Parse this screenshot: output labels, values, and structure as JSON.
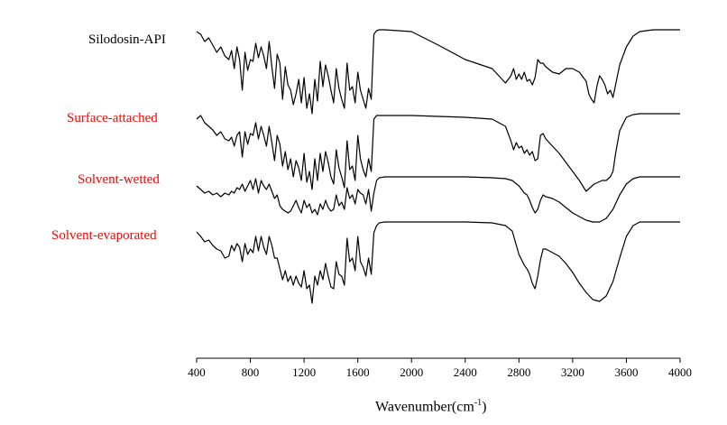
{
  "chart_data": {
    "type": "line",
    "title": "",
    "xlabel": "Wavenumber(cm-1)",
    "xlabel_main": "Wavenumber(cm",
    "xlabel_sup": "-1",
    "xlabel_close": ")",
    "ylabel": "",
    "xlim": [
      400,
      4000
    ],
    "xticks": [
      400,
      800,
      1200,
      1600,
      2000,
      2400,
      2800,
      3200,
      3600,
      4000
    ],
    "grid": false,
    "legend": "inline labels, left",
    "series": [
      {
        "name": "Silodosin-API",
        "color": "#000000",
        "x": [
          400,
          430,
          460,
          490,
          520,
          550,
          580,
          610,
          640,
          660,
          680,
          700,
          720,
          740,
          760,
          780,
          800,
          820,
          840,
          860,
          880,
          900,
          920,
          940,
          960,
          980,
          1000,
          1020,
          1040,
          1060,
          1080,
          1100,
          1120,
          1140,
          1160,
          1180,
          1200,
          1220,
          1240,
          1260,
          1280,
          1300,
          1320,
          1340,
          1360,
          1380,
          1400,
          1420,
          1440,
          1460,
          1480,
          1500,
          1520,
          1540,
          1560,
          1580,
          1600,
          1620,
          1640,
          1660,
          1680,
          1700,
          1720,
          1740,
          1760,
          1800,
          1900,
          2000,
          2200,
          2400,
          2600,
          2700,
          2740,
          2760,
          2780,
          2800,
          2820,
          2840,
          2860,
          2880,
          2900,
          2920,
          2940,
          2960,
          2980,
          3000,
          3050,
          3100,
          3150,
          3200,
          3250,
          3300,
          3320,
          3340,
          3360,
          3380,
          3400,
          3420,
          3440,
          3460,
          3480,
          3500,
          3550,
          3600,
          3650,
          3700,
          3800,
          4000
        ],
        "y": [
          35,
          38,
          46,
          42,
          50,
          58,
          52,
          62,
          66,
          56,
          76,
          52,
          66,
          100,
          58,
          78,
          66,
          68,
          48,
          64,
          52,
          62,
          76,
          46,
          74,
          98,
          60,
          70,
          110,
          74,
          94,
          100,
          116,
          104,
          88,
          114,
          86,
          120,
          104,
          126,
          88,
          112,
          68,
          96,
          72,
          84,
          100,
          114,
          76,
          98,
          110,
          120,
          70,
          100,
          96,
          114,
          80,
          100,
          110,
          120,
          98,
          110,
          38,
          34,
          33,
          33,
          34,
          35,
          50,
          66,
          76,
          92,
          84,
          76,
          88,
          82,
          88,
          80,
          90,
          88,
          94,
          86,
          66,
          70,
          70,
          74,
          80,
          82,
          76,
          76,
          80,
          90,
          104,
          110,
          114,
          96,
          84,
          88,
          94,
          104,
          100,
          108,
          72,
          52,
          40,
          35,
          33,
          33
        ]
      },
      {
        "name": "Surface-attached",
        "color": "#000000",
        "x": [
          400,
          430,
          460,
          490,
          520,
          550,
          580,
          610,
          640,
          660,
          680,
          700,
          720,
          740,
          760,
          780,
          800,
          820,
          840,
          860,
          880,
          900,
          920,
          940,
          960,
          980,
          1000,
          1020,
          1040,
          1060,
          1080,
          1100,
          1120,
          1140,
          1160,
          1180,
          1200,
          1220,
          1240,
          1260,
          1280,
          1300,
          1320,
          1340,
          1360,
          1380,
          1400,
          1420,
          1440,
          1460,
          1480,
          1500,
          1520,
          1540,
          1560,
          1580,
          1600,
          1620,
          1640,
          1660,
          1680,
          1700,
          1720,
          1740,
          1760,
          1800,
          1900,
          2000,
          2200,
          2400,
          2600,
          2700,
          2740,
          2760,
          2780,
          2800,
          2820,
          2840,
          2860,
          2880,
          2900,
          2920,
          2940,
          2960,
          2980,
          3000,
          3050,
          3100,
          3150,
          3200,
          3250,
          3300,
          3330,
          3360,
          3390,
          3420,
          3450,
          3480,
          3500,
          3520,
          3550,
          3600,
          3650,
          3700,
          3800,
          4000
        ],
        "y": [
          132,
          128,
          136,
          140,
          144,
          150,
          146,
          154,
          156,
          152,
          162,
          150,
          146,
          174,
          146,
          160,
          148,
          150,
          136,
          154,
          140,
          150,
          162,
          140,
          158,
          178,
          150,
          160,
          184,
          168,
          188,
          176,
          196,
          178,
          186,
          200,
          170,
          202,
          190,
          210,
          176,
          200,
          170,
          190,
          168,
          180,
          196,
          204,
          166,
          186,
          196,
          208,
          156,
          188,
          184,
          200,
          150,
          176,
          188,
          196,
          176,
          190,
          132,
          128,
          128,
          128,
          128,
          128,
          129,
          130,
          132,
          140,
          156,
          166,
          158,
          164,
          162,
          170,
          166,
          172,
          168,
          178,
          176,
          150,
          148,
          154,
          162,
          170,
          180,
          190,
          200,
          212,
          208,
          204,
          202,
          200,
          200,
          196,
          190,
          170,
          145,
          130,
          127,
          126,
          126,
          126
        ]
      },
      {
        "name": "Solvent-wetted",
        "color": "#000000",
        "x": [
          400,
          430,
          460,
          490,
          520,
          550,
          580,
          610,
          640,
          660,
          680,
          700,
          720,
          740,
          760,
          780,
          800,
          820,
          840,
          860,
          880,
          900,
          920,
          940,
          960,
          980,
          1000,
          1020,
          1040,
          1060,
          1080,
          1100,
          1120,
          1140,
          1160,
          1180,
          1200,
          1220,
          1240,
          1260,
          1280,
          1300,
          1320,
          1340,
          1360,
          1380,
          1400,
          1420,
          1440,
          1460,
          1480,
          1500,
          1520,
          1540,
          1560,
          1580,
          1600,
          1620,
          1640,
          1660,
          1680,
          1700,
          1720,
          1740,
          1760,
          1800,
          1900,
          2000,
          2200,
          2400,
          2600,
          2700,
          2750,
          2800,
          2840,
          2860,
          2880,
          2900,
          2920,
          2940,
          2960,
          2980,
          3000,
          3050,
          3100,
          3150,
          3200,
          3250,
          3300,
          3350,
          3400,
          3450,
          3500,
          3550,
          3600,
          3650,
          3700,
          3800,
          4000
        ],
        "y": [
          206,
          210,
          214,
          212,
          216,
          214,
          218,
          214,
          216,
          212,
          214,
          208,
          210,
          204,
          212,
          206,
          200,
          210,
          198,
          214,
          200,
          206,
          210,
          204,
          212,
          220,
          216,
          228,
          232,
          234,
          236,
          234,
          228,
          222,
          230,
          236,
          222,
          230,
          226,
          236,
          232,
          238,
          226,
          232,
          222,
          230,
          234,
          232,
          216,
          228,
          224,
          232,
          208,
          220,
          216,
          226,
          210,
          214,
          216,
          226,
          210,
          234,
          214,
          200,
          197,
          196,
          196,
          196,
          196,
          196,
          197,
          198,
          200,
          206,
          214,
          216,
          222,
          230,
          236,
          232,
          222,
          216,
          218,
          220,
          224,
          230,
          236,
          240,
          244,
          246,
          246,
          242,
          232,
          216,
          204,
          198,
          196,
          196,
          196
        ]
      },
      {
        "name": "Solvent-evaporated",
        "color": "#000000",
        "x": [
          400,
          430,
          460,
          490,
          520,
          550,
          580,
          610,
          640,
          660,
          680,
          700,
          720,
          740,
          760,
          780,
          800,
          820,
          840,
          860,
          880,
          900,
          920,
          940,
          960,
          980,
          1000,
          1020,
          1040,
          1060,
          1080,
          1100,
          1120,
          1140,
          1160,
          1180,
          1200,
          1220,
          1240,
          1260,
          1280,
          1300,
          1320,
          1340,
          1360,
          1380,
          1400,
          1420,
          1440,
          1460,
          1480,
          1500,
          1520,
          1540,
          1560,
          1580,
          1600,
          1620,
          1640,
          1660,
          1680,
          1700,
          1720,
          1740,
          1760,
          1800,
          1900,
          2000,
          2200,
          2400,
          2600,
          2700,
          2750,
          2800,
          2840,
          2860,
          2880,
          2900,
          2920,
          2940,
          2960,
          2980,
          3000,
          3050,
          3100,
          3150,
          3200,
          3250,
          3300,
          3350,
          3400,
          3450,
          3500,
          3550,
          3600,
          3650,
          3700,
          3800,
          4000
        ],
        "y": [
          257,
          262,
          268,
          266,
          272,
          276,
          278,
          286,
          284,
          272,
          278,
          270,
          274,
          290,
          270,
          282,
          276,
          280,
          262,
          278,
          262,
          274,
          282,
          262,
          272,
          286,
          286,
          298,
          310,
          300,
          312,
          306,
          316,
          306,
          314,
          318,
          300,
          320,
          316,
          336,
          306,
          316,
          300,
          310,
          292,
          306,
          318,
          320,
          290,
          304,
          306,
          316,
          264,
          290,
          286,
          300,
          262,
          290,
          296,
          306,
          286,
          304,
          258,
          250,
          247,
          246,
          246,
          246,
          246,
          246,
          247,
          250,
          256,
          282,
          294,
          298,
          304,
          314,
          320,
          306,
          288,
          276,
          276,
          280,
          284,
          292,
          302,
          314,
          324,
          332,
          334,
          328,
          312,
          286,
          262,
          250,
          246,
          246,
          246
        ]
      }
    ]
  }
}
